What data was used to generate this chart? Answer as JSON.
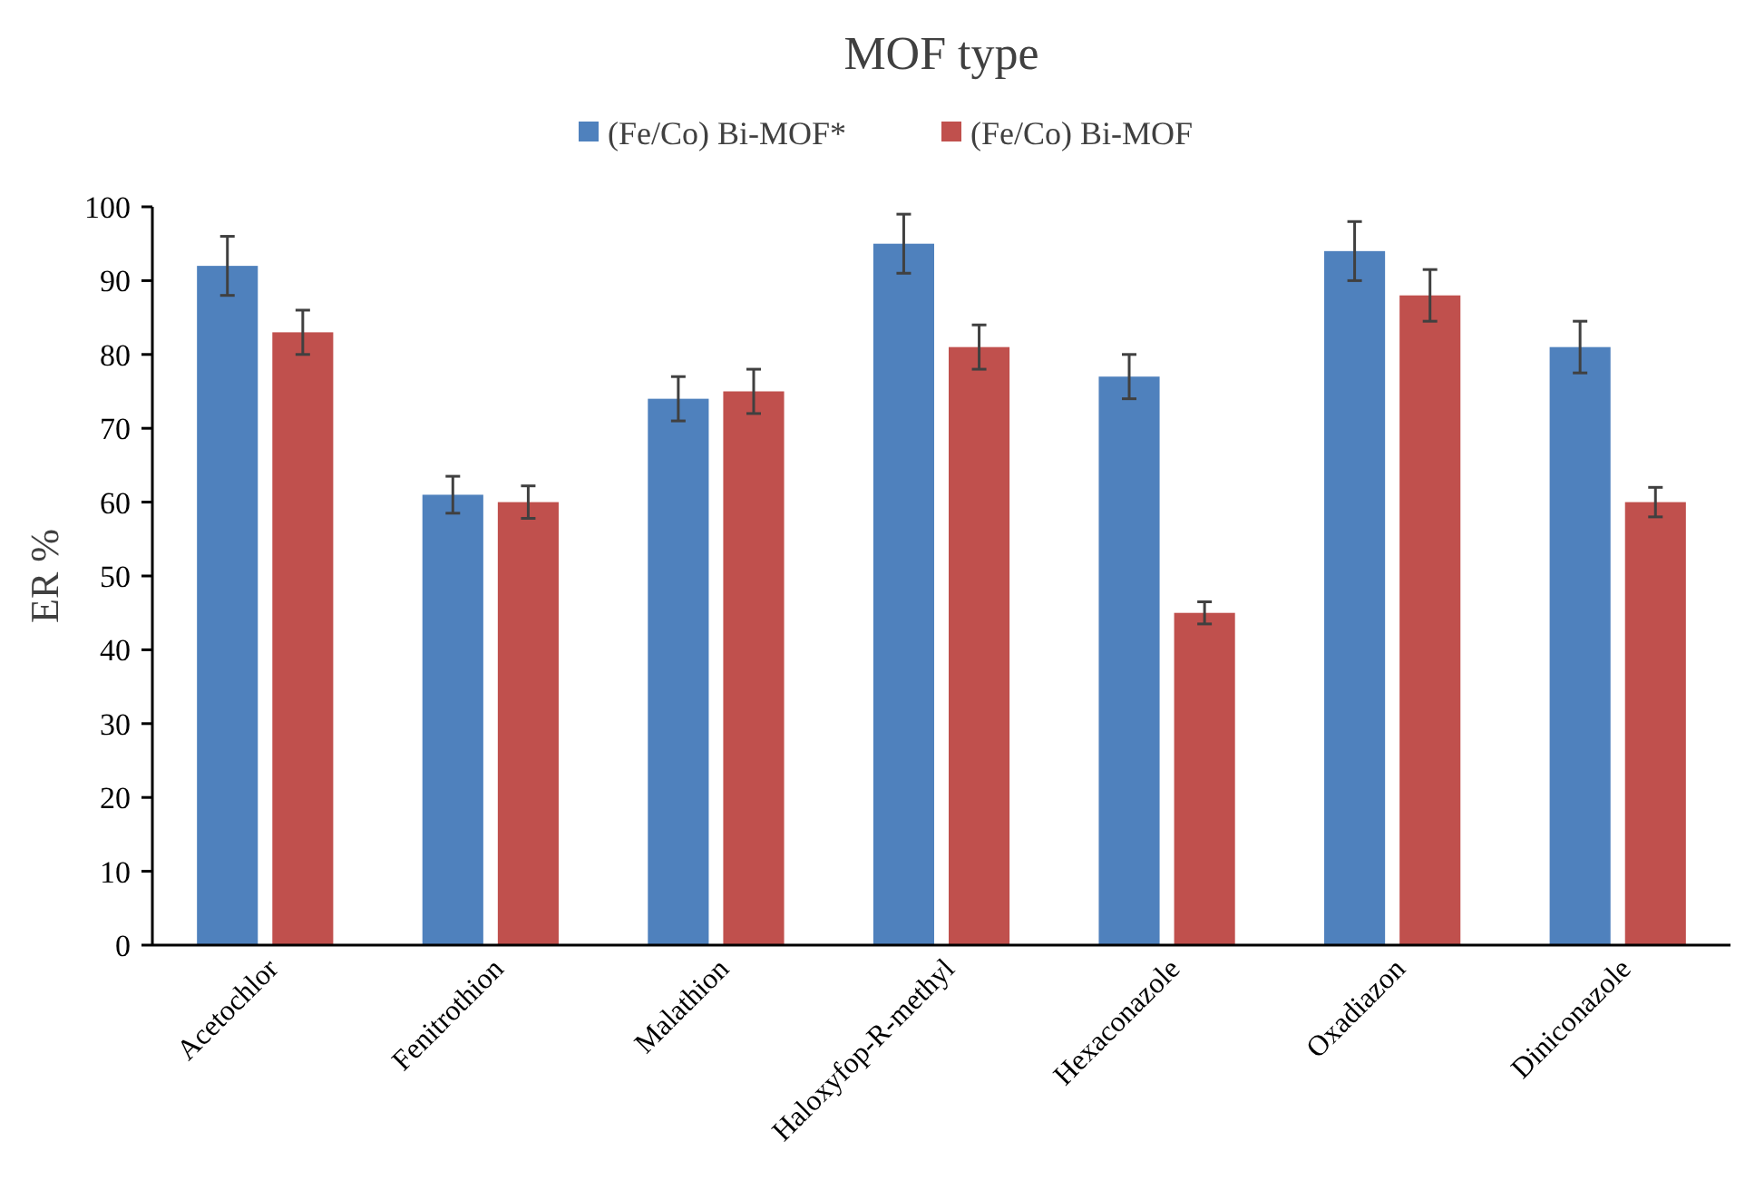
{
  "chart_data": {
    "type": "bar",
    "title": "MOF type",
    "ylabel": "ER %",
    "categories": [
      "Acetochlor",
      "Fenitrothion",
      "Malathion",
      "Haloxyfop-R-methyl",
      "Hexaconazole",
      "Oxadiazon",
      "Diniconazole"
    ],
    "series": [
      {
        "name": "(Fe/Co) Bi-MOF*",
        "color": "#4f81bd",
        "values": [
          92,
          61,
          74,
          95,
          77,
          94,
          81
        ],
        "errors": [
          4,
          2.5,
          3,
          4,
          3,
          4,
          3.5
        ]
      },
      {
        "name": "(Fe/Co) Bi-MOF",
        "color": "#c0504d",
        "values": [
          83,
          60,
          75,
          81,
          45,
          88,
          60
        ],
        "errors": [
          3,
          2.2,
          3,
          3,
          1.5,
          3.5,
          2
        ]
      }
    ],
    "ylim": [
      0,
      100
    ],
    "yticks": [
      0,
      10,
      20,
      30,
      40,
      50,
      60,
      70,
      80,
      90,
      100
    ],
    "grid": false,
    "legend": "top"
  }
}
